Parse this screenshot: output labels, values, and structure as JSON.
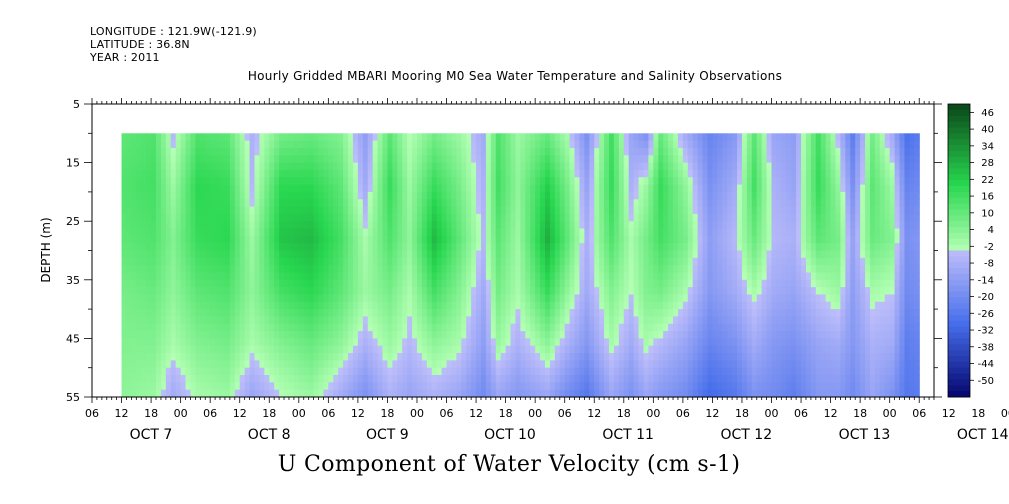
{
  "header": {
    "longitude": "LONGITUDE : 121.9W(-121.9)",
    "latitude": "LATITUDE : 36.8N",
    "year": "YEAR : 2011",
    "title": "Hourly Gridded MBARI Mooring M0 Sea Water Temperature and Salinity Observations"
  },
  "chart_data": {
    "type": "heatmap",
    "title": "Hourly Gridded MBARI Mooring M0 Sea Water Temperature and Salinity Observations",
    "xlabel": "U Component of Water Velocity (cm s-1)",
    "ylabel": "DEPTH (m)",
    "y_range": [
      5,
      55
    ],
    "y_reversed": true,
    "y_ticks": [
      5,
      15,
      25,
      35,
      45,
      55
    ],
    "y_minor_ticks": [
      10,
      20,
      30,
      40,
      50
    ],
    "data_depth_range": [
      10,
      55
    ],
    "x_range_hours": [
      6,
      177
    ],
    "data_x_range_hours": [
      12,
      174
    ],
    "x_tick_labels": [
      "06",
      "12",
      "18",
      "00",
      "06",
      "12",
      "18",
      "00",
      "06",
      "12",
      "18",
      "00",
      "06",
      "12",
      "18",
      "00",
      "06",
      "12",
      "18",
      "00",
      "06",
      "12",
      "18",
      "00",
      "06",
      "12",
      "18",
      "00",
      "06",
      "12",
      "18",
      "00"
    ],
    "x_day_labels": [
      "OCT  7",
      "OCT  8",
      "OCT  9",
      "OCT 10",
      "OCT 11",
      "OCT 12",
      "OCT 13",
      "OCT 14"
    ],
    "colorbar": {
      "labels": [
        "46",
        "40",
        "34",
        "28",
        "22",
        "16",
        "10",
        "4",
        "-2",
        "-8",
        "-14",
        "-20",
        "-26",
        "-32",
        "-38",
        "-44",
        "-50"
      ],
      "range": [
        -50,
        50
      ]
    },
    "bands": [
      {
        "x": 12,
        "v": [
          14,
          16,
          14,
          10,
          8,
          6
        ]
      },
      {
        "x": 18,
        "v": [
          16,
          18,
          16,
          12,
          8,
          4
        ]
      },
      {
        "x": 22,
        "v": [
          -2,
          4,
          8,
          6,
          2,
          -6
        ]
      },
      {
        "x": 27,
        "v": [
          16,
          22,
          20,
          14,
          8,
          2
        ]
      },
      {
        "x": 33,
        "v": [
          14,
          20,
          22,
          16,
          10,
          4
        ]
      },
      {
        "x": 38,
        "v": [
          -4,
          -2,
          4,
          6,
          2,
          -8
        ]
      },
      {
        "x": 44,
        "v": [
          10,
          22,
          26,
          18,
          8,
          0
        ]
      },
      {
        "x": 50,
        "v": [
          12,
          22,
          28,
          22,
          12,
          4
        ]
      },
      {
        "x": 56,
        "v": [
          8,
          14,
          18,
          14,
          6,
          -6
        ]
      },
      {
        "x": 61,
        "v": [
          -10,
          -6,
          2,
          4,
          -4,
          -14
        ]
      },
      {
        "x": 66,
        "v": [
          14,
          20,
          16,
          10,
          4,
          -4
        ]
      },
      {
        "x": 70,
        "v": [
          0,
          4,
          6,
          2,
          -2,
          -8
        ]
      },
      {
        "x": 75,
        "v": [
          10,
          20,
          28,
          18,
          6,
          -4
        ]
      },
      {
        "x": 80,
        "v": [
          4,
          10,
          14,
          8,
          2,
          -8
        ]
      },
      {
        "x": 85,
        "v": [
          -6,
          -4,
          -2,
          -6,
          -10,
          -16
        ]
      },
      {
        "x": 88,
        "v": [
          16,
          18,
          14,
          10,
          4,
          -8
        ]
      },
      {
        "x": 92,
        "v": [
          4,
          6,
          4,
          2,
          -4,
          -12
        ]
      },
      {
        "x": 98,
        "v": [
          12,
          24,
          30,
          20,
          6,
          -8
        ]
      },
      {
        "x": 102,
        "v": [
          2,
          10,
          14,
          6,
          -4,
          -16
        ]
      },
      {
        "x": 106,
        "v": [
          -14,
          -8,
          -4,
          -6,
          -12,
          -22
        ]
      },
      {
        "x": 111,
        "v": [
          18,
          20,
          16,
          8,
          2,
          -8
        ]
      },
      {
        "x": 115,
        "v": [
          -8,
          -4,
          2,
          0,
          -6,
          -14
        ]
      },
      {
        "x": 118,
        "v": [
          -14,
          4,
          10,
          8,
          2,
          -8
        ]
      },
      {
        "x": 121,
        "v": [
          12,
          20,
          18,
          10,
          -2,
          -12
        ]
      },
      {
        "x": 126,
        "v": [
          -6,
          6,
          10,
          2,
          -8,
          -16
        ]
      },
      {
        "x": 131,
        "v": [
          -18,
          -14,
          -10,
          -12,
          -18,
          -26
        ]
      },
      {
        "x": 136,
        "v": [
          -12,
          -6,
          -2,
          -6,
          -14,
          -22
        ]
      },
      {
        "x": 140,
        "v": [
          14,
          18,
          12,
          2,
          -6,
          -14
        ]
      },
      {
        "x": 144,
        "v": [
          -8,
          -4,
          -2,
          -6,
          -12,
          -16
        ]
      },
      {
        "x": 148,
        "v": [
          -10,
          -8,
          -4,
          -8,
          -14,
          -20
        ]
      },
      {
        "x": 153,
        "v": [
          18,
          20,
          14,
          0,
          -8,
          -12
        ]
      },
      {
        "x": 157,
        "v": [
          -2,
          6,
          10,
          4,
          -6,
          -12
        ]
      },
      {
        "x": 160,
        "v": [
          -20,
          -14,
          -8,
          -10,
          -12,
          -16
        ]
      },
      {
        "x": 164,
        "v": [
          10,
          14,
          12,
          2,
          -4,
          -8
        ]
      },
      {
        "x": 168,
        "v": [
          -6,
          4,
          8,
          0,
          -6,
          -14
        ]
      },
      {
        "x": 171,
        "v": [
          -24,
          -18,
          -14,
          -16,
          -20,
          -22
        ]
      },
      {
        "x": 174,
        "v": [
          -20,
          -16,
          -12,
          -14,
          -18,
          -20
        ]
      }
    ]
  }
}
